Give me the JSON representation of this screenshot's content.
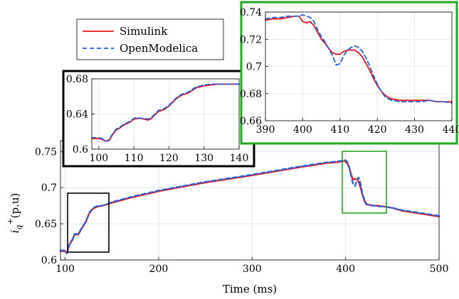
{
  "chart_data": [
    {
      "id": "main",
      "type": "line",
      "xlabel": "Time (ms)",
      "ylabel": "i_q^+ (p.u)",
      "xlim": [
        95,
        500
      ],
      "ylim": [
        0.6,
        0.765
      ],
      "xticks": [
        "100",
        "200",
        "300",
        "400",
        "500"
      ],
      "yticks": [
        "0.6",
        "0.65",
        "0.7",
        "0.75"
      ],
      "grid": true,
      "legend": {
        "placement": "top-left"
      },
      "series": [
        {
          "name": "Simulink",
          "color": "#e8141c",
          "style": "solid",
          "x": [
            95,
            100,
            102,
            103,
            105,
            108,
            110,
            114,
            118,
            122,
            126,
            130,
            135,
            140,
            150,
            170,
            200,
            250,
            300,
            350,
            380,
            390,
            395,
            398,
            400,
            402,
            404,
            406,
            408,
            410,
            412,
            414,
            416,
            418,
            420,
            422,
            425,
            430,
            435,
            440,
            450,
            460,
            470,
            480,
            490,
            500
          ],
          "y": [
            0.612,
            0.612,
            0.609,
            0.615,
            0.622,
            0.628,
            0.635,
            0.635,
            0.644,
            0.652,
            0.665,
            0.671,
            0.674,
            0.675,
            0.679,
            0.686,
            0.695,
            0.707,
            0.717,
            0.728,
            0.734,
            0.735,
            0.736,
            0.737,
            0.736,
            0.733,
            0.727,
            0.718,
            0.711,
            0.712,
            0.712,
            0.708,
            0.7,
            0.69,
            0.682,
            0.677,
            0.676,
            0.675,
            0.675,
            0.674,
            0.672,
            0.668,
            0.666,
            0.664,
            0.662,
            0.66
          ]
        },
        {
          "name": "OpenModelica",
          "color": "#1f63e6",
          "style": "dashed",
          "x": [
            95,
            100,
            102,
            103,
            105,
            108,
            110,
            114,
            118,
            122,
            126,
            130,
            135,
            140,
            150,
            170,
            200,
            250,
            300,
            350,
            380,
            390,
            395,
            398,
            400,
            402,
            404,
            406,
            408,
            410,
            412,
            414,
            416,
            418,
            420,
            422,
            425,
            430,
            435,
            440,
            450,
            460,
            470,
            480,
            490,
            500
          ],
          "y": [
            0.613,
            0.613,
            0.609,
            0.616,
            0.623,
            0.629,
            0.636,
            0.636,
            0.645,
            0.653,
            0.666,
            0.672,
            0.675,
            0.675,
            0.68,
            0.687,
            0.696,
            0.708,
            0.718,
            0.729,
            0.735,
            0.736,
            0.737,
            0.738,
            0.738,
            0.735,
            0.728,
            0.715,
            0.705,
            0.702,
            0.71,
            0.714,
            0.706,
            0.692,
            0.684,
            0.678,
            0.676,
            0.675,
            0.674,
            0.674,
            0.672,
            0.669,
            0.667,
            0.665,
            0.663,
            0.661
          ]
        }
      ]
    },
    {
      "id": "zoom_left",
      "type": "line",
      "xlim": [
        98,
        140
      ],
      "ylim": [
        0.6,
        0.68
      ],
      "xticks": [
        "100",
        "110",
        "120",
        "130",
        "140"
      ],
      "yticks": [
        "0.6",
        "0.64",
        "0.68"
      ],
      "grid": true,
      "series": [
        {
          "color": "#e8141c",
          "style": "solid",
          "x": [
            98,
            100,
            101,
            102,
            103,
            104,
            105,
            106,
            107,
            108,
            109,
            110,
            111,
            112,
            113,
            114,
            115,
            116,
            117,
            118,
            119,
            120,
            121,
            122,
            123,
            124,
            125,
            126,
            127,
            128,
            129,
            130,
            132,
            134,
            136,
            138,
            140
          ],
          "y": [
            0.612,
            0.612,
            0.611,
            0.609,
            0.61,
            0.617,
            0.622,
            0.624,
            0.627,
            0.629,
            0.631,
            0.634,
            0.635,
            0.635,
            0.634,
            0.633,
            0.635,
            0.639,
            0.643,
            0.644,
            0.646,
            0.649,
            0.653,
            0.657,
            0.66,
            0.662,
            0.663,
            0.665,
            0.668,
            0.67,
            0.671,
            0.672,
            0.673,
            0.674,
            0.674,
            0.674,
            0.674
          ]
        },
        {
          "color": "#1f63e6",
          "style": "dashed",
          "x": [
            98,
            100,
            101,
            102,
            103,
            104,
            105,
            106,
            107,
            108,
            109,
            110,
            111,
            112,
            113,
            114,
            115,
            116,
            117,
            118,
            119,
            120,
            121,
            122,
            123,
            124,
            125,
            126,
            127,
            128,
            129,
            130,
            132,
            134,
            136,
            138,
            140
          ],
          "y": [
            0.613,
            0.613,
            0.612,
            0.609,
            0.611,
            0.618,
            0.623,
            0.625,
            0.628,
            0.63,
            0.632,
            0.635,
            0.636,
            0.635,
            0.635,
            0.634,
            0.636,
            0.64,
            0.644,
            0.645,
            0.647,
            0.65,
            0.654,
            0.658,
            0.661,
            0.663,
            0.664,
            0.666,
            0.669,
            0.671,
            0.672,
            0.673,
            0.674,
            0.674,
            0.674,
            0.674,
            0.674
          ]
        }
      ]
    },
    {
      "id": "zoom_right",
      "type": "line",
      "xlim": [
        390,
        440
      ],
      "ylim": [
        0.66,
        0.74
      ],
      "xticks": [
        "390",
        "400",
        "410",
        "420",
        "430",
        "440"
      ],
      "yticks": [
        "0.66",
        "0.68",
        "0.7",
        "0.72",
        "0.74"
      ],
      "grid": true,
      "series": [
        {
          "color": "#e8141c",
          "style": "solid",
          "x": [
            390,
            392,
            394,
            396,
            398,
            399,
            400,
            401,
            402,
            403,
            404,
            405,
            406,
            407,
            408,
            409,
            410,
            411,
            412,
            413,
            414,
            415,
            416,
            417,
            418,
            419,
            420,
            421,
            422,
            423,
            424,
            426,
            428,
            430,
            432,
            434,
            436,
            438,
            440
          ],
          "y": [
            0.734,
            0.735,
            0.735,
            0.736,
            0.737,
            0.737,
            0.733,
            0.732,
            0.733,
            0.73,
            0.725,
            0.72,
            0.717,
            0.713,
            0.71,
            0.709,
            0.709,
            0.711,
            0.712,
            0.712,
            0.712,
            0.71,
            0.707,
            0.702,
            0.697,
            0.691,
            0.686,
            0.682,
            0.679,
            0.677,
            0.676,
            0.675,
            0.675,
            0.675,
            0.675,
            0.675,
            0.674,
            0.674,
            0.674
          ]
        },
        {
          "color": "#1f63e6",
          "style": "dashed",
          "x": [
            390,
            392,
            394,
            396,
            398,
            399,
            400,
            401,
            402,
            403,
            404,
            405,
            406,
            407,
            408,
            409,
            410,
            411,
            412,
            413,
            414,
            415,
            416,
            417,
            418,
            419,
            420,
            421,
            422,
            423,
            424,
            426,
            428,
            430,
            432,
            434,
            436,
            438,
            440
          ],
          "y": [
            0.735,
            0.736,
            0.736,
            0.737,
            0.737,
            0.737,
            0.738,
            0.737,
            0.736,
            0.733,
            0.727,
            0.722,
            0.718,
            0.713,
            0.708,
            0.701,
            0.702,
            0.708,
            0.712,
            0.714,
            0.715,
            0.714,
            0.711,
            0.706,
            0.7,
            0.693,
            0.687,
            0.682,
            0.678,
            0.676,
            0.675,
            0.674,
            0.674,
            0.674,
            0.674,
            0.675,
            0.674,
            0.674,
            0.673
          ]
        }
      ]
    }
  ]
}
